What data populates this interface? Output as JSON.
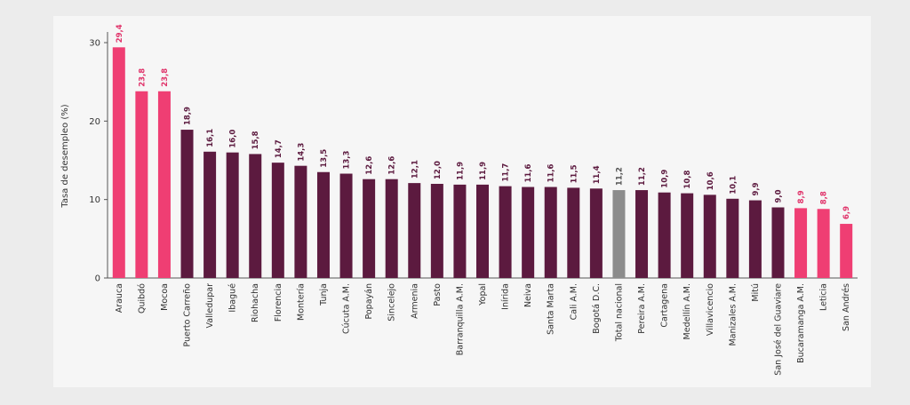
{
  "chart_data": {
    "type": "bar",
    "title": "",
    "xlabel": "",
    "ylabel": "Tasa de desempleo (%)",
    "ylim": [
      0,
      30
    ],
    "yticks": [
      0,
      10,
      20,
      30
    ],
    "grid": false,
    "categories": [
      "Arauca",
      "Quibdó",
      "Mocoa",
      "Puerto Carreño",
      "Valledupar",
      "Ibagué",
      "Riohacha",
      "Florencia",
      "Montería",
      "Tunja",
      "Cúcuta A.M.",
      "Popayán",
      "Sincelejo",
      "Armenia",
      "Pasto",
      "Barranquilla A.M.",
      "Yopal",
      "Inírida",
      "Neiva",
      "Santa Marta",
      "Cali A.M.",
      "Bogotá D.C.",
      "Total nacional",
      "Pereira A.M.",
      "Cartagena",
      "Medellín A.M.",
      "Villavicencio",
      "Manizales A.M.",
      "Mitú",
      "San José del Guaviare",
      "Bucaramanga A.M.",
      "Leticia",
      "San Andrés"
    ],
    "values": [
      29.4,
      23.8,
      23.8,
      18.9,
      16.1,
      16.0,
      15.8,
      14.7,
      14.3,
      13.5,
      13.3,
      12.6,
      12.6,
      12.1,
      12.0,
      11.9,
      11.9,
      11.7,
      11.6,
      11.6,
      11.5,
      11.4,
      11.2,
      11.2,
      10.9,
      10.8,
      10.6,
      10.1,
      9.9,
      9.0,
      8.9,
      8.8,
      6.9
    ],
    "value_labels": [
      "29,4",
      "23,8",
      "23,8",
      "18,9",
      "16,1",
      "16,0",
      "15,8",
      "14,7",
      "14,3",
      "13,5",
      "13,3",
      "12,6",
      "12,6",
      "12,1",
      "12,0",
      "11,9",
      "11,9",
      "11,7",
      "11,6",
      "11,6",
      "11,5",
      "11,4",
      "11,2",
      "11,2",
      "10,9",
      "10,8",
      "10,6",
      "10,1",
      "9,9",
      "9,0",
      "8,9",
      "8,8",
      "6,9"
    ],
    "bar_groups": [
      "pink",
      "pink",
      "pink",
      "dark",
      "dark",
      "dark",
      "dark",
      "dark",
      "dark",
      "dark",
      "dark",
      "dark",
      "dark",
      "dark",
      "dark",
      "dark",
      "dark",
      "dark",
      "dark",
      "dark",
      "dark",
      "dark",
      "gray",
      "dark",
      "dark",
      "dark",
      "dark",
      "dark",
      "dark",
      "dark",
      "pink",
      "pink",
      "pink"
    ],
    "colors": {
      "pink": "#ef3e73",
      "dark": "#5c1a3f",
      "gray": "#8c8c8c",
      "label_pink": "#e0336a",
      "label_dark": "#5c1a3f",
      "label_gray": "#555555"
    }
  }
}
